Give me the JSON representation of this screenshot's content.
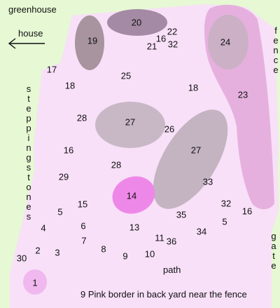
{
  "labels": {
    "greenhouse": "greenhouse",
    "house": "house",
    "stepping_stones": "steppingstones",
    "fence": "fence",
    "gate": "gate",
    "path": "path",
    "caption": "9  Pink border in back yard near the fence"
  },
  "colors": {
    "background": "#e6f8d4",
    "bed": "#f8e0f8",
    "border_strip": "#e6b0de",
    "shrub": "#b8a8b8",
    "shrub_dark": "#a48aa4",
    "highlight_pink": "#ee88e8",
    "spot_pink": "#f0b8ee"
  },
  "icons": {
    "house_arrow": "arrow-left-icon"
  },
  "numbers": {
    "20": "20",
    "19": "19",
    "22": "22",
    "16a": "16",
    "32a": "32",
    "21": "21",
    "24": "24",
    "17": "17",
    "25": "25",
    "18a": "18",
    "18b": "18",
    "23": "23",
    "28a": "28",
    "27a": "27",
    "26": "26",
    "27b": "27",
    "16b": "16",
    "28b": "28",
    "29": "29",
    "33": "33",
    "14": "14",
    "15": "15",
    "5a": "5",
    "32b": "32",
    "16c": "16",
    "35": "35",
    "5b": "5",
    "4": "4",
    "6": "6",
    "13": "13",
    "34": "34",
    "7": "7",
    "11": "11",
    "36": "36",
    "2": "2",
    "3": "3",
    "8": "8",
    "9": "9",
    "10": "10",
    "30": "30",
    "1": "1"
  }
}
